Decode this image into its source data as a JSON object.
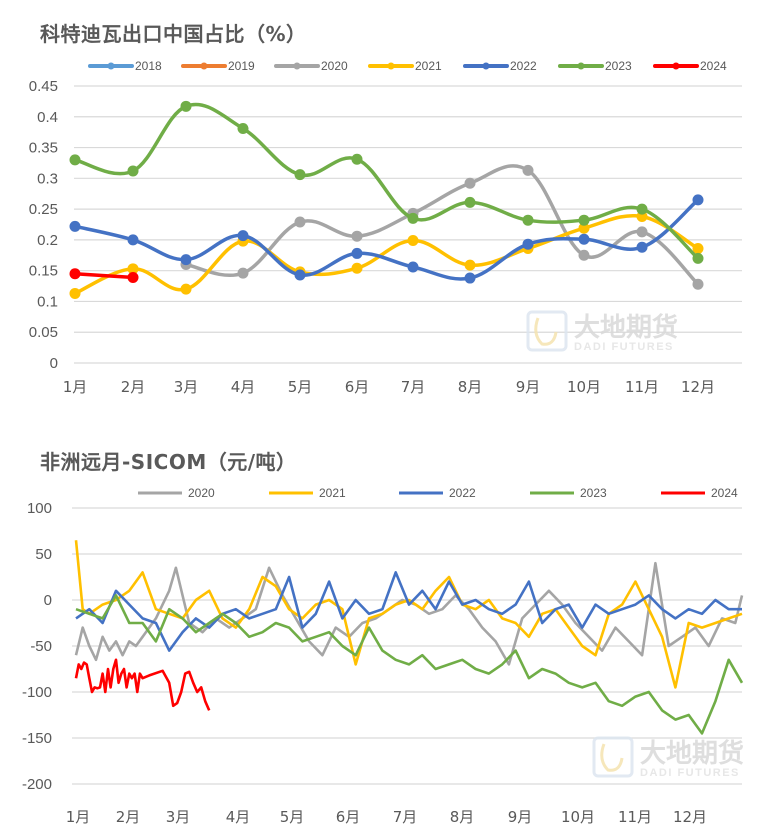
{
  "chart_data": [
    {
      "type": "line",
      "title": "科特迪瓦出口中国占比（%）",
      "xlabel": "",
      "ylabel": "",
      "ylim": [
        0,
        0.45
      ],
      "yticks": [
        "0",
        "0.05",
        "0.1",
        "0.15",
        "0.2",
        "0.25",
        "0.3",
        "0.35",
        "0.4",
        "0.45"
      ],
      "grid": true,
      "legend_position": "top",
      "smooth": true,
      "markers": true,
      "categories": [
        "1月",
        "2月",
        "3月",
        "4月",
        "5月",
        "6月",
        "7月",
        "8月",
        "9月",
        "10月",
        "11月",
        "12月"
      ],
      "series": [
        {
          "name": "2018",
          "color": "#5b9bd5",
          "values": [
            null,
            null,
            null,
            null,
            null,
            null,
            null,
            null,
            null,
            null,
            null,
            null
          ]
        },
        {
          "name": "2019",
          "color": "#ed7d31",
          "values": [
            null,
            null,
            null,
            null,
            null,
            null,
            null,
            null,
            null,
            null,
            null,
            null
          ]
        },
        {
          "name": "2020",
          "color": "#a5a5a5",
          "values": [
            null,
            null,
            0.16,
            0.146,
            0.229,
            0.206,
            0.243,
            0.292,
            0.313,
            0.175,
            0.213,
            0.128
          ]
        },
        {
          "name": "2021",
          "color": "#ffc000",
          "values": [
            0.113,
            0.153,
            0.12,
            0.198,
            0.148,
            0.154,
            0.199,
            0.159,
            0.186,
            0.219,
            0.238,
            0.186
          ]
        },
        {
          "name": "2022",
          "color": "#4472c4",
          "values": [
            0.222,
            0.2,
            0.168,
            0.207,
            0.143,
            0.178,
            0.156,
            0.138,
            0.193,
            0.201,
            0.188,
            0.265
          ]
        },
        {
          "name": "2023",
          "color": "#70ad47",
          "values": [
            0.33,
            0.312,
            0.417,
            0.381,
            0.306,
            0.331,
            0.235,
            0.261,
            0.232,
            0.232,
            0.25,
            0.17
          ]
        },
        {
          "name": "2024",
          "color": "#ff0000",
          "values": [
            0.145,
            0.139,
            null,
            null,
            null,
            null,
            null,
            null,
            null,
            null,
            null,
            null
          ]
        }
      ],
      "watermark": {
        "cn": "大地期货",
        "en": "DADI FUTURES"
      }
    },
    {
      "type": "line",
      "title": "非洲远月-SICOM（元/吨）",
      "xlabel": "",
      "ylabel": "",
      "ylim": [
        -200,
        100
      ],
      "yticks": [
        "100",
        "50",
        "0",
        "-50",
        "-100",
        "-150",
        "-200"
      ],
      "grid": true,
      "legend_position": "top",
      "smooth": false,
      "markers": false,
      "categories": [
        "1月",
        "2月",
        "3月",
        "4月",
        "5月",
        "6月",
        "7月",
        "8月",
        "9月",
        "10月",
        "11月",
        "12月"
      ],
      "x_fraction_note": "values sampled at approx. weekly positions as fraction of year (0..1)",
      "series": [
        {
          "name": "2020",
          "color": "#a5a5a5",
          "x": [
            0.0,
            0.01,
            0.02,
            0.03,
            0.04,
            0.05,
            0.06,
            0.07,
            0.08,
            0.09,
            0.1,
            0.12,
            0.14,
            0.15,
            0.17,
            0.19,
            0.21,
            0.23,
            0.25,
            0.27,
            0.29,
            0.31,
            0.33,
            0.35,
            0.37,
            0.39,
            0.41,
            0.43,
            0.45,
            0.47,
            0.49,
            0.51,
            0.53,
            0.55,
            0.57,
            0.59,
            0.61,
            0.63,
            0.65,
            0.67,
            0.69,
            0.71,
            0.73,
            0.75,
            0.77,
            0.79,
            0.81,
            0.83,
            0.85,
            0.87,
            0.89,
            0.91,
            0.93,
            0.95,
            0.97,
            0.99,
            1.0
          ],
          "values": [
            -60,
            -30,
            -50,
            -65,
            -40,
            -55,
            -45,
            -60,
            -45,
            -50,
            -40,
            -20,
            10,
            35,
            -25,
            -35,
            -20,
            -30,
            -20,
            -10,
            35,
            5,
            -20,
            -45,
            -60,
            -30,
            -40,
            -25,
            -20,
            -10,
            0,
            -5,
            -15,
            -10,
            5,
            -10,
            -30,
            -45,
            -70,
            -20,
            -5,
            10,
            -5,
            -25,
            -40,
            -55,
            -30,
            -45,
            -60,
            40,
            -50,
            -40,
            -30,
            -50,
            -20,
            -25,
            5
          ]
        },
        {
          "name": "2021",
          "color": "#ffc000",
          "x": [
            0.0,
            0.01,
            0.02,
            0.04,
            0.06,
            0.08,
            0.1,
            0.12,
            0.14,
            0.16,
            0.18,
            0.2,
            0.22,
            0.24,
            0.26,
            0.28,
            0.3,
            0.32,
            0.34,
            0.36,
            0.38,
            0.4,
            0.42,
            0.44,
            0.46,
            0.48,
            0.5,
            0.52,
            0.54,
            0.56,
            0.58,
            0.6,
            0.62,
            0.64,
            0.66,
            0.68,
            0.7,
            0.72,
            0.74,
            0.76,
            0.78,
            0.8,
            0.82,
            0.84,
            0.86,
            0.88,
            0.9,
            0.92,
            0.94,
            0.96,
            0.98,
            1.0
          ],
          "values": [
            65,
            -10,
            -15,
            -5,
            0,
            10,
            30,
            -10,
            -15,
            -20,
            0,
            10,
            -20,
            -30,
            -10,
            25,
            15,
            -10,
            -20,
            -5,
            0,
            -10,
            -70,
            -20,
            -15,
            -5,
            0,
            -10,
            10,
            25,
            -5,
            -10,
            0,
            -20,
            -25,
            -40,
            -15,
            -10,
            -30,
            -50,
            -60,
            -15,
            -5,
            20,
            -10,
            -40,
            -95,
            -25,
            -30,
            -25,
            -20,
            -15
          ]
        },
        {
          "name": "2022",
          "color": "#4472c4",
          "x": [
            0.0,
            0.02,
            0.04,
            0.06,
            0.08,
            0.1,
            0.12,
            0.14,
            0.16,
            0.18,
            0.2,
            0.22,
            0.24,
            0.26,
            0.28,
            0.3,
            0.32,
            0.34,
            0.36,
            0.38,
            0.4,
            0.42,
            0.44,
            0.46,
            0.48,
            0.5,
            0.52,
            0.54,
            0.56,
            0.58,
            0.6,
            0.62,
            0.64,
            0.66,
            0.68,
            0.7,
            0.72,
            0.74,
            0.76,
            0.78,
            0.8,
            0.82,
            0.84,
            0.86,
            0.88,
            0.9,
            0.92,
            0.94,
            0.96,
            0.98,
            1.0
          ],
          "values": [
            -20,
            -10,
            -25,
            10,
            -5,
            -20,
            -25,
            -55,
            -35,
            -20,
            -30,
            -15,
            -10,
            -20,
            -15,
            -10,
            25,
            -30,
            -15,
            20,
            -20,
            0,
            -15,
            -10,
            30,
            -5,
            10,
            -10,
            20,
            -5,
            0,
            -10,
            -15,
            -5,
            20,
            -25,
            -10,
            -5,
            -30,
            -5,
            -15,
            -10,
            -5,
            5,
            -10,
            -20,
            -10,
            -15,
            0,
            -10,
            -10
          ]
        },
        {
          "name": "2023",
          "color": "#70ad47",
          "x": [
            0.0,
            0.02,
            0.04,
            0.06,
            0.08,
            0.1,
            0.12,
            0.14,
            0.16,
            0.18,
            0.2,
            0.22,
            0.24,
            0.26,
            0.28,
            0.3,
            0.32,
            0.34,
            0.36,
            0.38,
            0.4,
            0.42,
            0.44,
            0.46,
            0.48,
            0.5,
            0.52,
            0.54,
            0.56,
            0.58,
            0.6,
            0.62,
            0.64,
            0.66,
            0.68,
            0.7,
            0.72,
            0.74,
            0.76,
            0.78,
            0.8,
            0.82,
            0.84,
            0.86,
            0.88,
            0.9,
            0.92,
            0.94,
            0.96,
            0.98,
            1.0
          ],
          "values": [
            -10,
            -15,
            -20,
            5,
            -25,
            -25,
            -45,
            -10,
            -20,
            -35,
            -25,
            -15,
            -25,
            -40,
            -35,
            -25,
            -30,
            -45,
            -40,
            -35,
            -50,
            -60,
            -30,
            -55,
            -65,
            -70,
            -60,
            -75,
            -70,
            -65,
            -75,
            -80,
            -70,
            -55,
            -85,
            -75,
            -80,
            -90,
            -95,
            -90,
            -110,
            -115,
            -105,
            -100,
            -120,
            -130,
            -125,
            -145,
            -110,
            -65,
            -90
          ]
        },
        {
          "name": "2024",
          "color": "#ff0000",
          "x": [
            0.0,
            0.004,
            0.008,
            0.012,
            0.016,
            0.02,
            0.024,
            0.028,
            0.032,
            0.036,
            0.04,
            0.044,
            0.048,
            0.052,
            0.056,
            0.06,
            0.064,
            0.068,
            0.072,
            0.076,
            0.08,
            0.084,
            0.088,
            0.092,
            0.096,
            0.1,
            0.11,
            0.13,
            0.14,
            0.146,
            0.152,
            0.158,
            0.164,
            0.17,
            0.176,
            0.182,
            0.188,
            0.194,
            0.2
          ],
          "values": [
            -85,
            -70,
            -75,
            -68,
            -70,
            -85,
            -100,
            -95,
            -96,
            -95,
            -80,
            -100,
            -75,
            -95,
            -75,
            -65,
            -90,
            -80,
            -75,
            -95,
            -80,
            -85,
            -80,
            -100,
            -80,
            -85,
            -82,
            -77,
            -90,
            -115,
            -112,
            -100,
            -80,
            -78,
            -90,
            -100,
            -95,
            -110,
            -120
          ]
        }
      ],
      "watermark": {
        "cn": "大地期货",
        "en": "DADI FUTURES"
      }
    }
  ]
}
